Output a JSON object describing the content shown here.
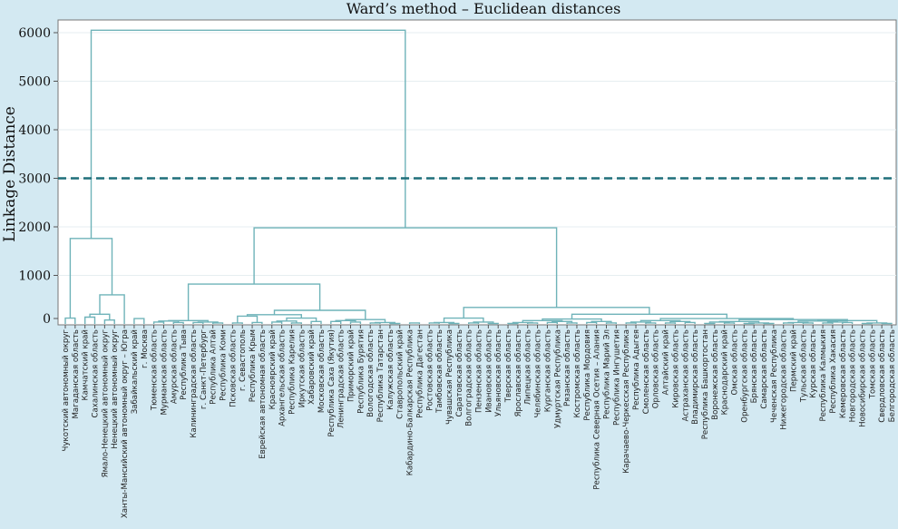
{
  "chart_data": {
    "type": "dendrogram",
    "title": "Ward’s method – Euclidean distances",
    "ylabel": "Linkage Distance",
    "xlabel": "",
    "ylim": [
      0,
      6150
    ],
    "yticks": [
      0,
      1000,
      2000,
      3000,
      4000,
      5000,
      6000
    ],
    "grid": true,
    "cut_line": {
      "value": 3000,
      "style": "dashed"
    },
    "colors": {
      "background": "#d3e9f2",
      "plot": "#ffffff",
      "branch": "#6fb3b9",
      "cut": "#1f6f7a",
      "grid": "#e6eef0"
    },
    "categories": [
      "Чукотский автономный округ",
      "Магаданская область",
      "Камчатский край",
      "Сахалинская область",
      "Ямало-Ненецкий автономный округ",
      "Ненецкий автономный округ",
      "Ханты-Мансийский автономный округ – Югра",
      "Забайкальский край",
      "г. Москва",
      "Тюменская область",
      "Мурманская область",
      "Амурская область",
      "Республика Тыва",
      "Калининградская область",
      "г. Санкт-Петербург",
      "Республика Алтай",
      "Республика Коми",
      "Псковская область",
      "г. Севастополь",
      "Республика Крым",
      "Еврейская автономная область",
      "Красноярский край",
      "Архангельская область",
      "Республика Карелия",
      "Иркутская область",
      "Хабаровский край",
      "Московская область",
      "Республика Саха (Якутия)",
      "Ленинградская область",
      "Приморский край",
      "Республика Бурятия",
      "Вологодская область",
      "Республика Татарстан",
      "Калужская область",
      "Ставропольский край",
      "Кабардино-Балкарская Республика",
      "Республика Дагестан",
      "Ростовская область",
      "Тамбовская область",
      "Чувашская Республика",
      "Саратовская область",
      "Волгоградская область",
      "Пензенская область",
      "Ивановская область",
      "Ульяновская область",
      "Тверская область",
      "Ярославская область",
      "Липецкая область",
      "Челябинская область",
      "Курганская область",
      "Удмуртская Республика",
      "Рязанская область",
      "Костромская область",
      "Республика Мордовия",
      "Республика Северная Осетия – Алания",
      "Республика Марий Эл",
      "Республика Ингушетия",
      "Карачаево-Черкесская Республика",
      "Республика Адыгея",
      "Смоленская область",
      "Орловская область",
      "Алтайский край",
      "Кировская область",
      "Астраханская область",
      "Владимирская область",
      "Республика Башкортостан",
      "Воронежская область",
      "Краснодарский край",
      "Омская область",
      "Оренбургская область",
      "Брянская область",
      "Самарская область",
      "Чеченская Республика",
      "Нижегородская область",
      "Пермский край",
      "Тульская область",
      "Курская область",
      "Республика Калмыкия",
      "Республика Хакасия",
      "Кемеровская область",
      "Новгородская область",
      "Новосибирская область",
      "Томская область",
      "Свердловская область",
      "Белгородская область"
    ],
    "merges": [
      {
        "left": 0,
        "right": 1,
        "height": 120
      },
      {
        "left": 4,
        "right": 5,
        "height": 80
      },
      {
        "left": 2,
        "right": 3,
        "height": 140
      },
      {
        "left": "m2",
        "right": "m1",
        "height": 200
      },
      {
        "left": "m3",
        "right": 6,
        "height": 600
      },
      {
        "left": "m0",
        "right": "m4",
        "height": 1760
      },
      {
        "left": 7,
        "right": 8,
        "height": 110
      },
      {
        "left": 9,
        "right": 10,
        "height": 40
      },
      {
        "left": 11,
        "right": 12,
        "height": 30
      },
      {
        "left": "m7",
        "right": "m8",
        "height": 60
      },
      {
        "left": 13,
        "right": 14,
        "height": 30
      },
      {
        "left": 15,
        "right": 16,
        "height": 20
      },
      {
        "left": "m10",
        "right": "m11",
        "height": 40
      },
      {
        "left": "m9",
        "right": "m12",
        "height": 70
      },
      {
        "left": 17,
        "right": 18,
        "height": 20
      },
      {
        "left": 19,
        "right": 20,
        "height": 30
      },
      {
        "left": "m14",
        "right": "m15",
        "height": 160
      },
      {
        "left": 21,
        "right": 22,
        "height": 40
      },
      {
        "left": 23,
        "right": 24,
        "height": 20
      },
      {
        "left": "m17",
        "right": "m18",
        "height": 60
      },
      {
        "left": 25,
        "right": 26,
        "height": 50
      },
      {
        "left": "m19",
        "right": "m20",
        "height": 120
      },
      {
        "left": "m16",
        "right": "m21",
        "height": 190
      },
      {
        "left": 27,
        "right": 28,
        "height": 50
      },
      {
        "left": 29,
        "right": 30,
        "height": 40
      },
      {
        "left": "m23",
        "right": "m24",
        "height": 70
      },
      {
        "left": 31,
        "right": 32,
        "height": 20
      },
      {
        "left": 33,
        "right": 34,
        "height": 10
      },
      {
        "left": "m26",
        "right": "m27",
        "height": 30
      },
      {
        "left": "m25",
        "right": "m28",
        "height": 90
      },
      {
        "left": "m22",
        "right": "m29",
        "height": 280
      },
      {
        "left": "m13",
        "right": "m30",
        "height": 820
      },
      {
        "left": 35,
        "right": 36,
        "height": 20
      },
      {
        "left": 37,
        "right": 38,
        "height": 20
      },
      {
        "left": 39,
        "right": 40,
        "height": 10
      },
      {
        "left": "m33",
        "right": "m34",
        "height": 30
      },
      {
        "left": 41,
        "right": 42,
        "height": 20
      },
      {
        "left": 43,
        "right": 44,
        "height": 10
      },
      {
        "left": "m36",
        "right": "m37",
        "height": 40
      },
      {
        "left": "m35",
        "right": "m38",
        "height": 120
      },
      {
        "left": 45,
        "right": 46,
        "height": 10
      },
      {
        "left": 47,
        "right": 48,
        "height": 20
      },
      {
        "left": "m40",
        "right": "m41",
        "height": 30
      },
      {
        "left": 49,
        "right": 50,
        "height": 30
      },
      {
        "left": 51,
        "right": 52,
        "height": 20
      },
      {
        "left": "m43",
        "right": "m44",
        "height": 50
      },
      {
        "left": "m42",
        "right": "m45",
        "height": 70
      },
      {
        "left": 53,
        "right": 54,
        "height": 30
      },
      {
        "left": 55,
        "right": 56,
        "height": 20
      },
      {
        "left": "m47",
        "right": "m48",
        "height": 50
      },
      {
        "left": "m46",
        "right": "m49",
        "height": 100
      },
      {
        "left": 57,
        "right": 58,
        "height": 20
      },
      {
        "left": 59,
        "right": 60,
        "height": 20
      },
      {
        "left": "m51",
        "right": "m52",
        "height": 40
      },
      {
        "left": 61,
        "right": 62,
        "height": 20
      },
      {
        "left": 63,
        "right": 64,
        "height": 30
      },
      {
        "left": "m54",
        "right": "m55",
        "height": 50
      },
      {
        "left": "m53",
        "right": "m56",
        "height": 70
      },
      {
        "left": 65,
        "right": 66,
        "height": 10
      },
      {
        "left": 67,
        "right": 68,
        "height": 20
      },
      {
        "left": "m58",
        "right": "m59",
        "height": 40
      },
      {
        "left": 69,
        "right": 70,
        "height": 10
      },
      {
        "left": 71,
        "right": 72,
        "height": 10
      },
      {
        "left": "m61",
        "right": "m62",
        "height": 20
      },
      {
        "left": "m60",
        "right": "m63",
        "height": 50
      },
      {
        "left": 73,
        "right": 74,
        "height": 20
      },
      {
        "left": 75,
        "right": 76,
        "height": 20
      },
      {
        "left": "m65",
        "right": "m66",
        "height": 30
      },
      {
        "left": 77,
        "right": 78,
        "height": 20
      },
      {
        "left": 79,
        "right": 80,
        "height": 30
      },
      {
        "left": "m68",
        "right": "m69",
        "height": 40
      },
      {
        "left": "m67",
        "right": "m70",
        "height": 60
      },
      {
        "left": 81,
        "right": 82,
        "height": 10
      },
      {
        "left": 83,
        "right": 84,
        "height": 10
      },
      {
        "left": "m72",
        "right": "m73",
        "height": 20
      },
      {
        "left": "m71",
        "right": "m74",
        "height": 70
      },
      {
        "left": "m64",
        "right": "m75",
        "height": 90
      },
      {
        "left": "m57",
        "right": "m76",
        "height": 110
      },
      {
        "left": "m50",
        "right": "m77",
        "height": 200
      },
      {
        "left": "m39",
        "right": "m78",
        "height": 340
      },
      {
        "left": "m31",
        "right": "m79",
        "height": 1980
      },
      {
        "left": "m5",
        "right": "m80",
        "height": 6050
      }
    ]
  }
}
